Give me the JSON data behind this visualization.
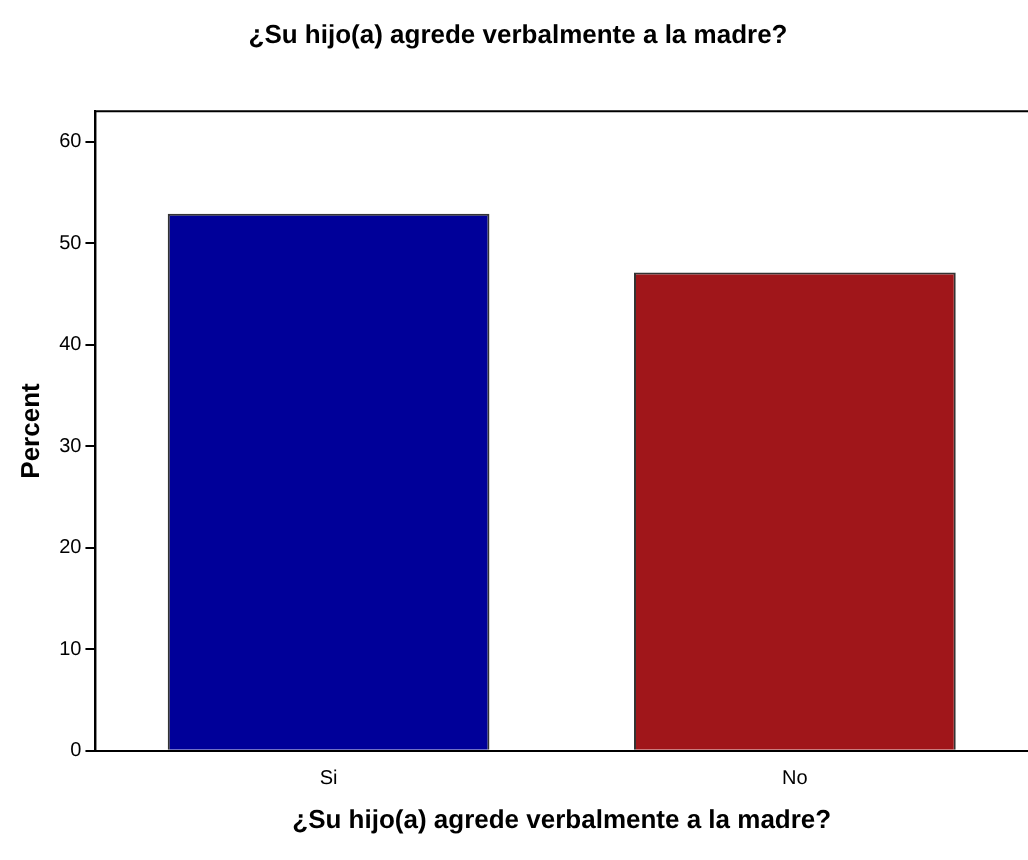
{
  "chart_data": {
    "type": "bar",
    "title": "¿Su hijo(a) agrede verbalmente a la madre?",
    "xlabel": "¿Su hijo(a) agrede verbalmente a la madre?",
    "ylabel": "Percent",
    "categories": [
      "Si",
      "No"
    ],
    "series": [
      {
        "colors": [
          "#000099",
          "#a0161a"
        ],
        "values": [
          52.9,
          47.1
        ]
      }
    ],
    "ylim": [
      0,
      63
    ],
    "yticks": [
      0,
      10,
      20,
      30,
      40,
      50,
      60
    ],
    "grid": false,
    "legend": false
  }
}
